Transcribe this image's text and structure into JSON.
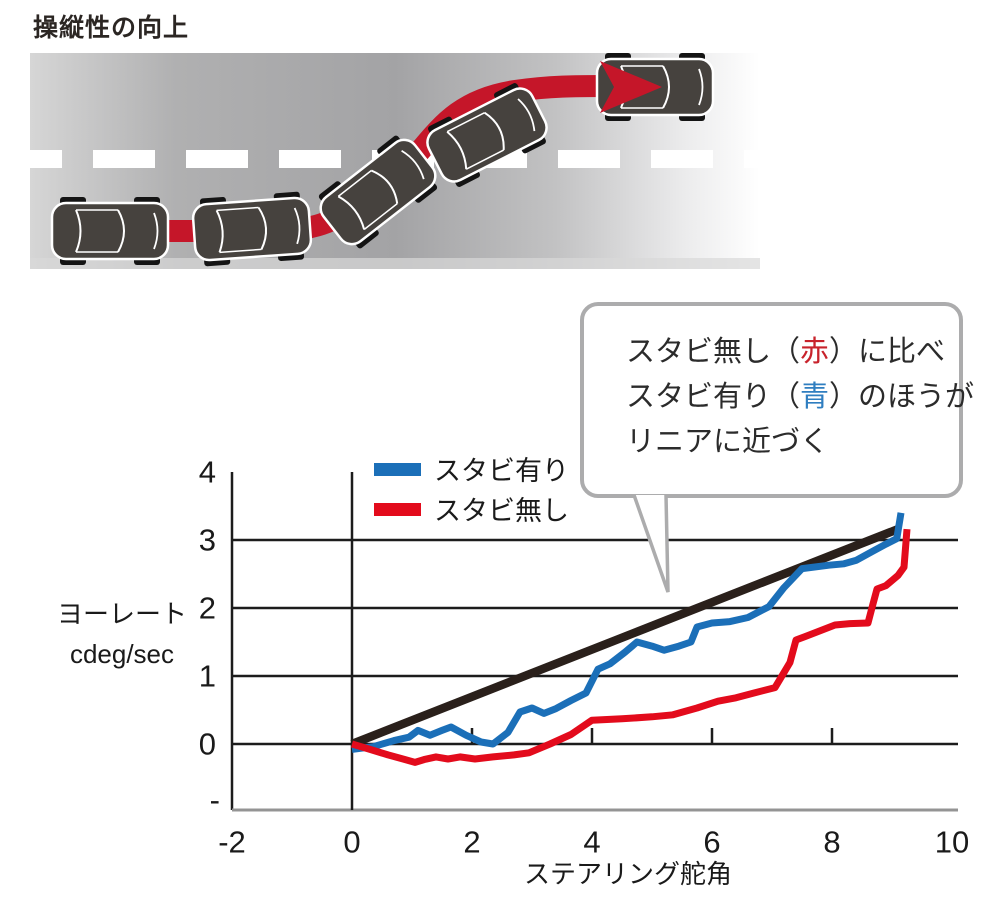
{
  "page": {
    "title": "操縦性の向上"
  },
  "road_illustration": {
    "description_icons": [
      "car-top-view-icon",
      "lane-change-arrow-icon",
      "dashed-lane-line"
    ],
    "path_color": "#c51629",
    "car_body_color": "#46423e"
  },
  "callout": {
    "line1_pre": "スタビ無し（",
    "line1_red": "赤",
    "line1_post": "）に比べ",
    "line2_pre": "スタビ有り（",
    "line2_blue": "青",
    "line2_post": "）のほうが",
    "line3": "リニアに近づく"
  },
  "chart_data": {
    "type": "line",
    "title": "",
    "xlabel": "ステアリング舵角",
    "ylabel_line1": "ヨーレート",
    "ylabel_line2": "cdeg/sec",
    "xlim": [
      -2,
      10
    ],
    "ylim": [
      -1,
      4
    ],
    "x_ticks": [
      -2,
      0,
      2,
      4,
      6,
      8,
      10
    ],
    "y_ticks": [
      4,
      3,
      2,
      1,
      0
    ],
    "y_tick_bottom_label": "-",
    "x_axis_tick_marks": [
      2,
      4,
      6,
      8
    ],
    "grid_y": [
      0,
      1,
      2,
      3
    ],
    "grid_on": true,
    "legend_position": "top-left-inside",
    "legend": [
      {
        "label": "スタビ有り",
        "color": "#1b6fb8"
      },
      {
        "label": "スタビ無し",
        "color": "#e30b1c"
      }
    ],
    "series": [
      {
        "name": "linear-reference",
        "color": "#2a201b",
        "width": 8.5,
        "points": [
          [
            0,
            0
          ],
          [
            9.1,
            3.16
          ]
        ]
      },
      {
        "name": "スタビ有り",
        "color": "#1b6fb8",
        "width": 7,
        "points": [
          [
            0,
            -0.08
          ],
          [
            0.35,
            -0.04
          ],
          [
            0.7,
            0.05
          ],
          [
            0.95,
            0.1
          ],
          [
            1.1,
            0.2
          ],
          [
            1.3,
            0.13
          ],
          [
            1.5,
            0.2
          ],
          [
            1.65,
            0.25
          ],
          [
            1.9,
            0.13
          ],
          [
            2.15,
            0.03
          ],
          [
            2.35,
            0.0
          ],
          [
            2.6,
            0.17
          ],
          [
            2.8,
            0.47
          ],
          [
            3.0,
            0.53
          ],
          [
            3.2,
            0.45
          ],
          [
            3.4,
            0.52
          ],
          [
            3.65,
            0.64
          ],
          [
            3.9,
            0.75
          ],
          [
            4.1,
            1.1
          ],
          [
            4.3,
            1.18
          ],
          [
            4.55,
            1.35
          ],
          [
            4.75,
            1.5
          ],
          [
            5.0,
            1.44
          ],
          [
            5.2,
            1.38
          ],
          [
            5.45,
            1.44
          ],
          [
            5.65,
            1.5
          ],
          [
            5.75,
            1.72
          ],
          [
            6.0,
            1.78
          ],
          [
            6.3,
            1.8
          ],
          [
            6.6,
            1.86
          ],
          [
            6.95,
            2.02
          ],
          [
            7.2,
            2.3
          ],
          [
            7.5,
            2.58
          ],
          [
            7.95,
            2.63
          ],
          [
            8.2,
            2.65
          ],
          [
            8.4,
            2.7
          ],
          [
            8.65,
            2.82
          ],
          [
            8.9,
            2.94
          ],
          [
            9.08,
            3.02
          ],
          [
            9.15,
            3.4
          ]
        ]
      },
      {
        "name": "スタビ無し",
        "color": "#e30b1c",
        "width": 7,
        "points": [
          [
            0,
            0
          ],
          [
            0.3,
            -0.08
          ],
          [
            0.6,
            -0.16
          ],
          [
            0.85,
            -0.22
          ],
          [
            1.05,
            -0.27
          ],
          [
            1.2,
            -0.23
          ],
          [
            1.4,
            -0.19
          ],
          [
            1.6,
            -0.22
          ],
          [
            1.8,
            -0.19
          ],
          [
            2.05,
            -0.22
          ],
          [
            2.35,
            -0.19
          ],
          [
            2.7,
            -0.16
          ],
          [
            2.95,
            -0.13
          ],
          [
            3.3,
            0.0
          ],
          [
            3.65,
            0.14
          ],
          [
            4.0,
            0.35
          ],
          [
            4.5,
            0.37
          ],
          [
            5.0,
            0.4
          ],
          [
            5.35,
            0.43
          ],
          [
            5.75,
            0.53
          ],
          [
            6.1,
            0.63
          ],
          [
            6.4,
            0.68
          ],
          [
            6.7,
            0.75
          ],
          [
            7.05,
            0.83
          ],
          [
            7.3,
            1.2
          ],
          [
            7.4,
            1.53
          ],
          [
            7.55,
            1.58
          ],
          [
            8.05,
            1.75
          ],
          [
            8.3,
            1.77
          ],
          [
            8.6,
            1.78
          ],
          [
            8.68,
            2.05
          ],
          [
            8.75,
            2.28
          ],
          [
            8.9,
            2.33
          ],
          [
            9.1,
            2.48
          ],
          [
            9.2,
            2.6
          ],
          [
            9.25,
            3.16
          ]
        ]
      }
    ]
  },
  "colors": {
    "grid": "#1c1c1c",
    "axis_bottom_gray": "#949494",
    "road_dark": "#a3a3a5",
    "road_light": "#d6d6d6"
  }
}
